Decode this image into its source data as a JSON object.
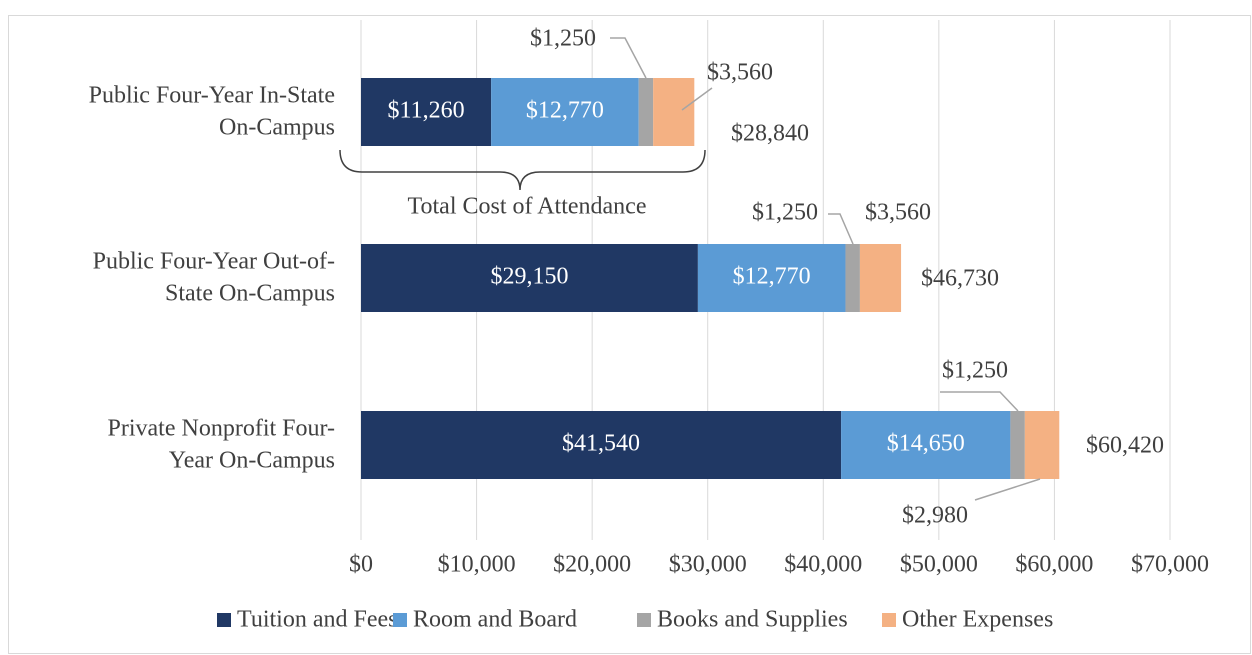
{
  "chart_data": {
    "type": "stacked-barh",
    "categories": [
      [
        "Public Four-Year In-State",
        "On-Campus"
      ],
      [
        "Public Four-Year Out-of-",
        "State On-Campus"
      ],
      [
        "Private Nonprofit Four-",
        "Year On-Campus"
      ]
    ],
    "series": [
      {
        "name": "Tuition and Fees",
        "color": "#203864",
        "values": [
          11260,
          29150,
          41540
        ],
        "value_labels": [
          "$11,260",
          "$29,150",
          "$41,540"
        ]
      },
      {
        "name": "Room and Board",
        "color": "#5b9bd5",
        "values": [
          12770,
          12770,
          14650
        ],
        "value_labels": [
          "$12,770",
          "$12,770",
          "$14,650"
        ]
      },
      {
        "name": "Books and Supplies",
        "color": "#a5a5a5",
        "values": [
          1250,
          1250,
          1250
        ],
        "value_labels": [
          "$1,250",
          "$1,250",
          "$1,250"
        ]
      },
      {
        "name": "Other Expenses",
        "color": "#f4b183",
        "values": [
          3560,
          3560,
          2980
        ],
        "value_labels": [
          "$3,560",
          "$3,560",
          "$2,980"
        ]
      }
    ],
    "totals": [
      28840,
      46730,
      60420
    ],
    "total_labels": [
      "$28,840",
      "$46,730",
      "$60,420"
    ],
    "annotation": "Total Cost of Attendance",
    "xlim": [
      0,
      70000
    ],
    "xticks": [
      {
        "value": 0,
        "label": "$0"
      },
      {
        "value": 10000,
        "label": "$10,000"
      },
      {
        "value": 20000,
        "label": "$20,000"
      },
      {
        "value": 30000,
        "label": "$30,000"
      },
      {
        "value": 40000,
        "label": "$40,000"
      },
      {
        "value": 50000,
        "label": "$50,000"
      },
      {
        "value": 60000,
        "label": "$60,000"
      },
      {
        "value": 70000,
        "label": "$70,000"
      }
    ],
    "grid": true,
    "legend": "bottom"
  }
}
